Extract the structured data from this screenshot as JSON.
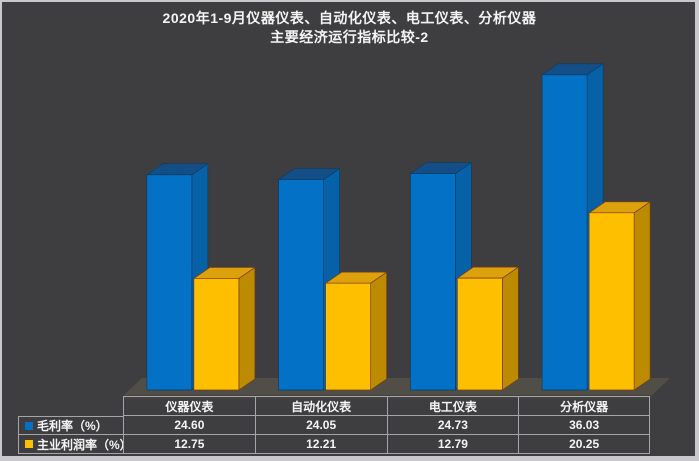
{
  "title": {
    "line1": "2020年1-9月仪器仪表、自动化仪表、电工仪表、分析仪器",
    "line2": "主要经济运行指标比较-2"
  },
  "chart_data": {
    "type": "bar",
    "style": "3d-clustered-column",
    "title": "2020年1-9月仪器仪表、自动化仪表、电工仪表、分析仪器 主要经济运行指标比较-2",
    "categories": [
      "仪器仪表",
      "自动化仪表",
      "电工仪表",
      "分析仪器"
    ],
    "series": [
      {
        "name": "毛利率（%）",
        "values": [
          24.6,
          24.05,
          24.73,
          36.03
        ],
        "color": {
          "front": "#0271C6",
          "top": "#134F86",
          "side": "#0761A6",
          "edge": "#0B3E66"
        }
      },
      {
        "name": "主业利润率（%）",
        "values": [
          12.75,
          12.21,
          12.79,
          20.25
        ],
        "color": {
          "front": "#FEBF01",
          "top": "#DCA10D",
          "side": "#BC8B02",
          "edge": "#7A3D10"
        }
      }
    ],
    "value_axis_visible": false,
    "gridlines": false,
    "legend_position": "data-table-left",
    "data_table_shown": true
  },
  "table": {
    "rows": [
      {
        "label": "毛利率（%）",
        "values": [
          "24.60",
          "24.05",
          "24.73",
          "36.03"
        ]
      },
      {
        "label": "主业利润率（%）",
        "values": [
          "12.75",
          "12.21",
          "12.79",
          "20.25"
        ]
      }
    ]
  },
  "colors": {
    "background": "#3E3E40",
    "frame_border": "#C9C9CD",
    "table_line": "#A6A6AA",
    "text": "#F4F4F4",
    "floor_top": "#514E48",
    "floor_front": "#454340"
  }
}
